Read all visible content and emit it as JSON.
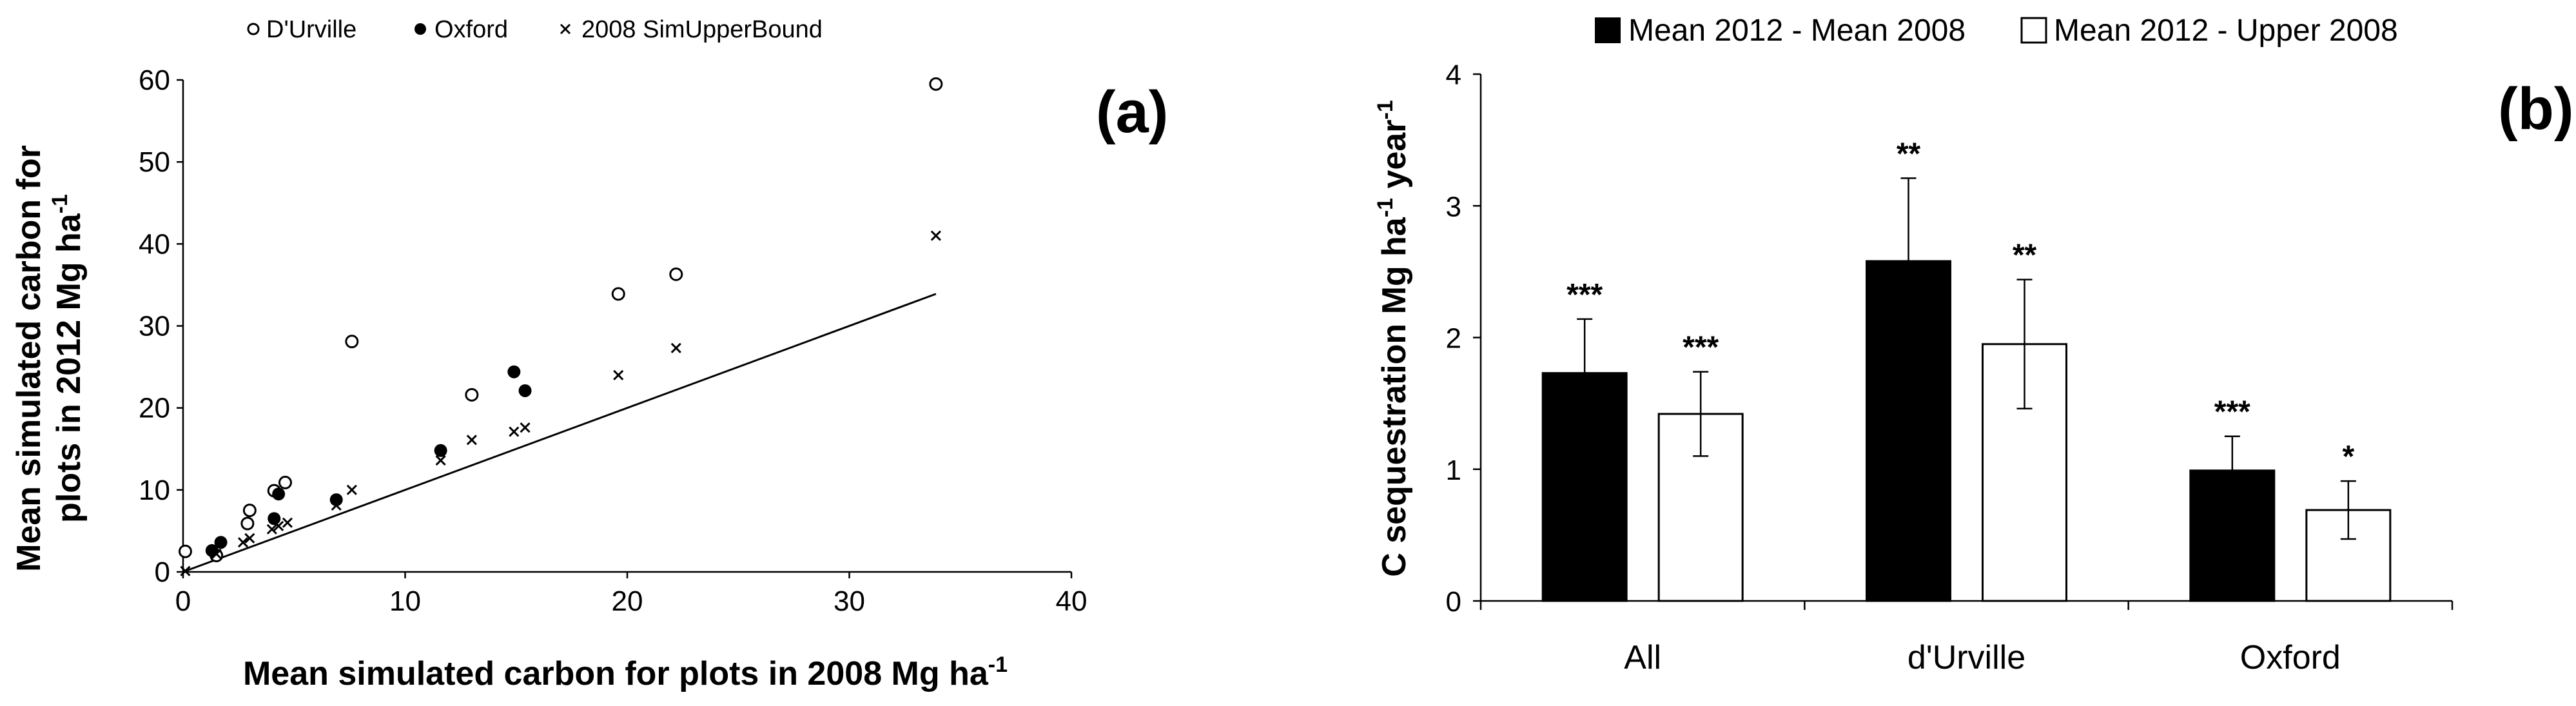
{
  "chart_data": [
    {
      "type": "scatter",
      "panel_label": "(a)",
      "xlabel_main": "Mean simulated carbon for plots in 2008 Mg ha",
      "xlabel_sup": "-1",
      "ylabel_line1": "Mean simulated carbon for",
      "ylabel_line2_main": "plots in 2012 Mg ha",
      "ylabel_line2_sup": "-1",
      "xlim": [
        0,
        40
      ],
      "ylim": [
        0,
        60
      ],
      "x_ticks": [
        0,
        10,
        20,
        30,
        40
      ],
      "y_ticks": [
        0,
        10,
        20,
        30,
        40,
        50,
        60
      ],
      "grid": false,
      "legend_position": "top",
      "series": [
        {
          "name": "D'Urville",
          "marker": "open-circle",
          "points": [
            [
              0.1,
              2.5
            ],
            [
              1.5,
              2.0
            ],
            [
              2.9,
              5.9
            ],
            [
              3.0,
              7.5
            ],
            [
              4.1,
              9.9
            ],
            [
              4.6,
              10.9
            ],
            [
              7.6,
              28.1
            ],
            [
              13.0,
              21.6
            ],
            [
              19.6,
              33.9
            ],
            [
              22.2,
              36.3
            ],
            [
              33.9,
              59.5
            ]
          ]
        },
        {
          "name": "Oxford",
          "marker": "filled-circle",
          "points": [
            [
              1.3,
              2.6
            ],
            [
              1.7,
              3.6
            ],
            [
              4.1,
              6.5
            ],
            [
              4.3,
              9.5
            ],
            [
              6.9,
              8.8
            ],
            [
              11.6,
              14.8
            ],
            [
              14.9,
              24.4
            ],
            [
              15.4,
              22.1
            ]
          ]
        },
        {
          "name": "2008 SimUpperBound",
          "marker": "cross",
          "points": [
            [
              0.1,
              0.1
            ],
            [
              1.5,
              2.2
            ],
            [
              2.7,
              3.6
            ],
            [
              3.0,
              4.1
            ],
            [
              4.0,
              5.2
            ],
            [
              4.3,
              5.6
            ],
            [
              4.7,
              6.0
            ],
            [
              6.9,
              8.1
            ],
            [
              7.6,
              10.0
            ],
            [
              11.6,
              13.6
            ],
            [
              13.0,
              16.1
            ],
            [
              14.9,
              17.1
            ],
            [
              15.4,
              17.6
            ],
            [
              19.6,
              24.0
            ],
            [
              22.2,
              27.3
            ],
            [
              33.9,
              41.0
            ]
          ]
        }
      ],
      "reference_line": [
        [
          0,
          0
        ],
        [
          33.9,
          33.9
        ]
      ]
    },
    {
      "type": "bar",
      "panel_label": "(b)",
      "categories": [
        "All",
        "d'Urville",
        "Oxford"
      ],
      "ylabel_pre": "C sequestration Mg ha",
      "ylabel_sup1": "-1",
      "ylabel_mid": " year",
      "ylabel_sup2": "-1",
      "ylim": [
        0,
        4
      ],
      "y_ticks": [
        0,
        1,
        2,
        3,
        4
      ],
      "grid": false,
      "legend_position": "top",
      "series": [
        {
          "name": "Mean 2012 - Mean 2008",
          "fill": "#000000",
          "values": [
            1.73,
            2.58,
            0.99
          ],
          "error": [
            0.41,
            0.63,
            0.26
          ],
          "significance": [
            "***",
            "**",
            "***"
          ]
        },
        {
          "name": "Mean 2012 - Upper 2008",
          "fill": "#ffffff",
          "values": [
            1.42,
            1.95,
            0.69
          ],
          "error": [
            0.32,
            0.49,
            0.22
          ],
          "significance": [
            "***",
            "**",
            "*"
          ]
        }
      ]
    }
  ]
}
